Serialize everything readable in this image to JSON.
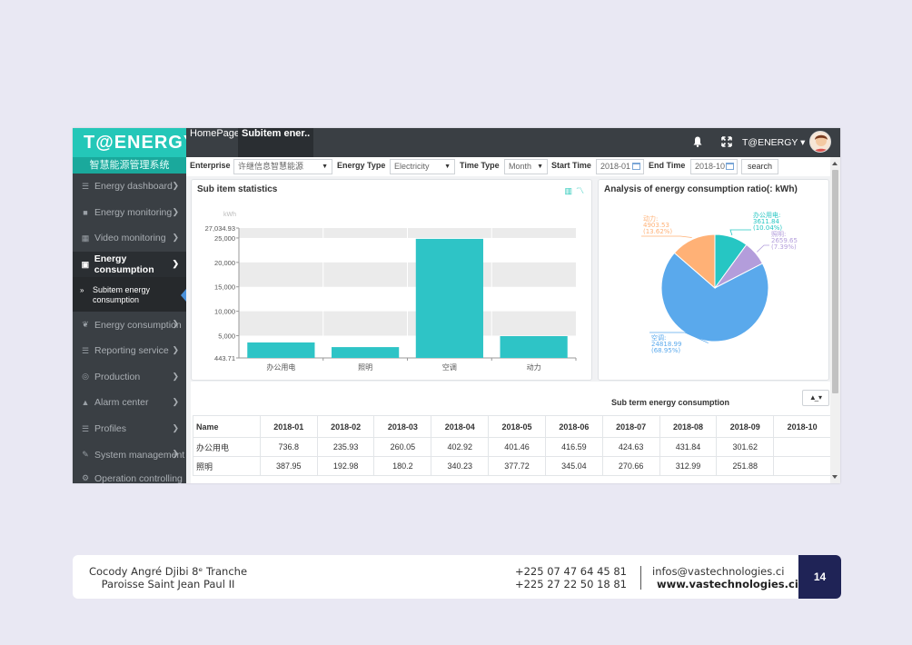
{
  "app": {
    "logo": "T@ENERGY",
    "logo_sub": "智慧能源管理系统",
    "menu": [
      {
        "label": "Energy dashboard",
        "icon": "dashboard-icon"
      },
      {
        "label": "Energy monitoring",
        "icon": "camera-icon"
      },
      {
        "label": "Video monitoring",
        "icon": "film-icon"
      },
      {
        "label": "Energy consumption",
        "icon": "picture-icon",
        "active": true
      },
      {
        "label": "Energy consumption",
        "icon": "leaf-icon"
      },
      {
        "label": "Reporting service",
        "icon": "list-icon"
      },
      {
        "label": "Production",
        "icon": "circle-icon"
      },
      {
        "label": "Alarm center",
        "icon": "bell-icon"
      },
      {
        "label": "Profiles",
        "icon": "list-icon"
      },
      {
        "label": "System management",
        "icon": "wrench-icon"
      },
      {
        "label": "Operation controlling",
        "icon": "gear-icon"
      }
    ],
    "submenu_label": "Subitem energy consumption",
    "tabs": {
      "home": "HomePage",
      "current": "Subitem ener.."
    },
    "user": "T@ENERGY"
  },
  "filters": {
    "enterprise_label": "Enterprise",
    "enterprise_value": "许继信息智慧能源",
    "energy_type_label": "Energy Type",
    "energy_type_value": "Electricity",
    "time_type_label": "Time Type",
    "time_type_value": "Month",
    "start_time_label": "Start Time",
    "start_time_value": "2018-01",
    "end_time_label": "End Time",
    "end_time_value": "2018-10",
    "search_label": "search"
  },
  "bar_panel": {
    "title": "Sub item statistics"
  },
  "pie_panel": {
    "title": "Analysis of energy consumption ratio(: kWh)"
  },
  "chart_data": [
    {
      "type": "bar",
      "categories": [
        "办公用电",
        "照明",
        "空调",
        "动力"
      ],
      "values": [
        3611.84,
        2659.65,
        24818.99,
        4903.53
      ],
      "ylabel": "kWh",
      "ylim": [
        443.71,
        27034.93
      ],
      "ytick_labels": [
        "27,034.93",
        "25,000",
        "20,000",
        "15,000",
        "10,000",
        "5,000",
        "443.71"
      ],
      "ytick_values": [
        27034.93,
        25000,
        20000,
        15000,
        10000,
        5000,
        443.71
      ],
      "color": "#2ec4c6",
      "grid": true
    },
    {
      "type": "pie",
      "title": "Analysis of energy consumption ratio(: kWh)",
      "slices": [
        {
          "label": "办公用电",
          "value": 3611.84,
          "percent": "10.04%",
          "value_text": "3611.84",
          "color": "#26c6c3"
        },
        {
          "label": "照明",
          "value": 2659.65,
          "percent": "7.39%",
          "value_text": "2659.65",
          "color": "#b39ddb"
        },
        {
          "label": "空调",
          "value": 24818.99,
          "percent": "68.95%",
          "value_text": "24818.99",
          "color": "#5aa9ec"
        },
        {
          "label": "动力",
          "value": 4903.53,
          "percent": "13.62%",
          "value_text": "4903.53",
          "color": "#ffb176"
        }
      ]
    }
  ],
  "table": {
    "title": "Sub term energy consumption",
    "headers": [
      "Name",
      "2018-01",
      "2018-02",
      "2018-03",
      "2018-04",
      "2018-05",
      "2018-06",
      "2018-07",
      "2018-08",
      "2018-09",
      "2018-10"
    ],
    "rows": [
      [
        "办公用电",
        "736.8",
        "235.93",
        "260.05",
        "402.92",
        "401.46",
        "416.59",
        "424.63",
        "431.84",
        "301.62",
        ""
      ],
      [
        "照明",
        "387.95",
        "192.98",
        "180.2",
        "340.23",
        "377.72",
        "345.04",
        "270.66",
        "312.99",
        "251.88",
        ""
      ]
    ]
  },
  "footer": {
    "address_line1": "Cocody Angré Djibi 8ᵉ Tranche",
    "address_line2": "Paroisse Saint Jean Paul II",
    "phone1": "+225 07 47 64 45 81",
    "phone2": "+225 27 22 50 18 81",
    "email": "infos@vastechnologies.ci",
    "website": "www.vastechnologies.ci",
    "page": "14"
  }
}
